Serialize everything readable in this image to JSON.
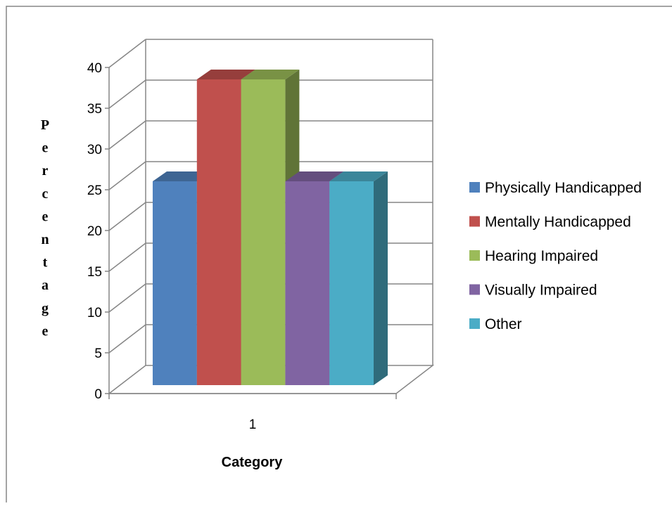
{
  "chart_data": {
    "type": "bar",
    "categories": [
      "1"
    ],
    "series": [
      {
        "name": "Physically Handicapped",
        "values": [
          25
        ],
        "color": "#4F81BD"
      },
      {
        "name": "Mentally Handicapped",
        "values": [
          37.5
        ],
        "color": "#C0504D"
      },
      {
        "name": "Hearing Impaired",
        "values": [
          37.5
        ],
        "color": "#9BBB59"
      },
      {
        "name": "Visually Impaired",
        "values": [
          25
        ],
        "color": "#8064A2"
      },
      {
        "name": "Other",
        "values": [
          25
        ],
        "color": "#4BACC6"
      }
    ],
    "title": "",
    "xlabel": "Category",
    "ylabel": "Percentage",
    "ylim": [
      0,
      40
    ],
    "yticks": [
      "0",
      "5",
      "10",
      "15",
      "20",
      "25",
      "30",
      "35",
      "40"
    ],
    "grid": true,
    "legend": "right",
    "style": "3d-clustered-column"
  }
}
